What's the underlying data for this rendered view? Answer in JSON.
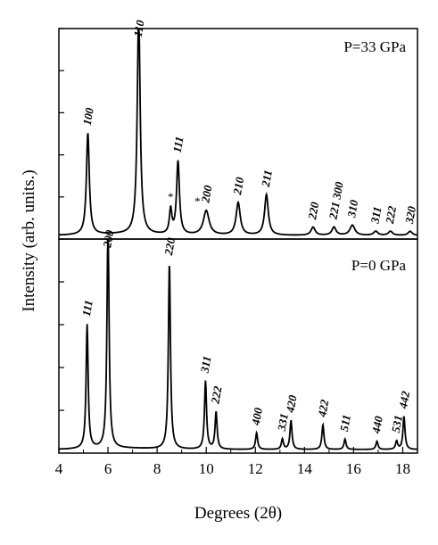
{
  "chart_data": {
    "type": "line",
    "xlabel": "Degrees (2θ)",
    "ylabel": "Intensity (arb. units.)",
    "xlim": [
      4,
      18.6
    ],
    "xticks": [
      "4",
      "6",
      "8",
      "10",
      "12",
      "14",
      "16",
      "18"
    ],
    "grid": false,
    "panels": [
      {
        "label": "P=33 GPa",
        "baseline": 0.02,
        "ylim": [
          0,
          1.0
        ],
        "peaks": [
          {
            "x": 5.18,
            "y": 0.5,
            "w": 0.07,
            "label": "100"
          },
          {
            "x": 7.25,
            "y": 1.1,
            "w": 0.07,
            "label": "110"
          },
          {
            "x": 8.55,
            "y": 0.12,
            "w": 0.06,
            "star": "*"
          },
          {
            "x": 8.85,
            "y": 0.36,
            "w": 0.07,
            "label": "111"
          },
          {
            "x": 10.0,
            "y": 0.12,
            "w": 0.14,
            "star": "*",
            "label": "200"
          },
          {
            "x": 11.3,
            "y": 0.16,
            "w": 0.1,
            "label": "210"
          },
          {
            "x": 12.45,
            "y": 0.2,
            "w": 0.09,
            "label": "211"
          },
          {
            "x": 14.35,
            "y": 0.04,
            "w": 0.1,
            "label": "220"
          },
          {
            "x": 15.2,
            "y": 0.04,
            "w": 0.1,
            "label": "221 300"
          },
          {
            "x": 15.95,
            "y": 0.05,
            "w": 0.12,
            "label": "310"
          },
          {
            "x": 16.9,
            "y": 0.02,
            "w": 0.1,
            "label": "311"
          },
          {
            "x": 17.5,
            "y": 0.02,
            "w": 0.1,
            "label": "222"
          },
          {
            "x": 18.3,
            "y": 0.02,
            "w": 0.1,
            "label": "320"
          }
        ]
      },
      {
        "label": "P=0 GPa",
        "baseline": 0.02,
        "ylim": [
          0,
          1.0
        ],
        "peaks": [
          {
            "x": 5.15,
            "y": 0.6,
            "w": 0.05,
            "label": "111"
          },
          {
            "x": 6.0,
            "y": 1.1,
            "w": 0.05,
            "label": "200"
          },
          {
            "x": 8.5,
            "y": 0.9,
            "w": 0.05,
            "label": "220"
          },
          {
            "x": 9.97,
            "y": 0.33,
            "w": 0.05,
            "label": "311"
          },
          {
            "x": 10.4,
            "y": 0.18,
            "w": 0.05,
            "label": "222"
          },
          {
            "x": 12.05,
            "y": 0.08,
            "w": 0.05,
            "label": "400"
          },
          {
            "x": 13.1,
            "y": 0.05,
            "w": 0.05,
            "label": "331"
          },
          {
            "x": 13.45,
            "y": 0.14,
            "w": 0.05,
            "label": "420"
          },
          {
            "x": 14.75,
            "y": 0.12,
            "w": 0.05,
            "label": "422"
          },
          {
            "x": 15.65,
            "y": 0.05,
            "w": 0.05,
            "label": "511"
          },
          {
            "x": 16.95,
            "y": 0.04,
            "w": 0.05,
            "label": "440"
          },
          {
            "x": 17.75,
            "y": 0.04,
            "w": 0.05,
            "label": "531"
          },
          {
            "x": 18.05,
            "y": 0.16,
            "w": 0.05,
            "label": "442"
          }
        ]
      }
    ]
  }
}
